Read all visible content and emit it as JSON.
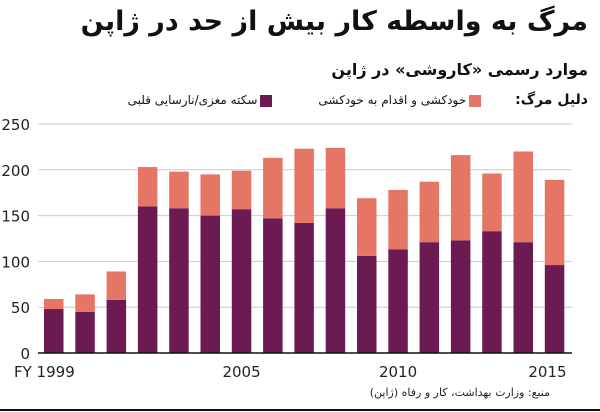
{
  "title": "مرگ به واسطه کار بیش از حد در ژاپن",
  "subtitle": "موارد رسمی «کاروشی» در ژاپن",
  "legend_label": "دلیل مرگ:",
  "source": "منبع: وزارت بهداشت، کار و رفاه (ژاپن)",
  "chart_data": {
    "type": "bar",
    "stacked": true,
    "categories": [
      "1999",
      "2000",
      "2001",
      "2002",
      "2003",
      "2004",
      "2005",
      "2006",
      "2007",
      "2008",
      "2009",
      "2010",
      "2011",
      "2012",
      "2013",
      "2014",
      "2015"
    ],
    "x_tick_labels": [
      {
        "index": 0,
        "label": "FY 1999"
      },
      {
        "index": 6,
        "label": "2005"
      },
      {
        "index": 11,
        "label": "2010"
      },
      {
        "index": 16,
        "label": "2015"
      }
    ],
    "series": [
      {
        "name": "سکته مغزی/نارسایی قلبی",
        "color": "#6b1a52",
        "values": [
          48,
          45,
          58,
          160,
          158,
          150,
          157,
          147,
          142,
          158,
          106,
          113,
          121,
          123,
          133,
          121,
          96
        ]
      },
      {
        "name": "خودکشی و اقدام به خودکشی",
        "color": "#e57565",
        "values": [
          11,
          19,
          31,
          43,
          40,
          45,
          42,
          66,
          81,
          66,
          63,
          65,
          66,
          93,
          63,
          99,
          93
        ]
      }
    ],
    "ylim": [
      0,
      250
    ],
    "yticks": [
      0,
      50,
      100,
      150,
      200,
      250
    ],
    "grid": true,
    "legend_placement": "top"
  }
}
